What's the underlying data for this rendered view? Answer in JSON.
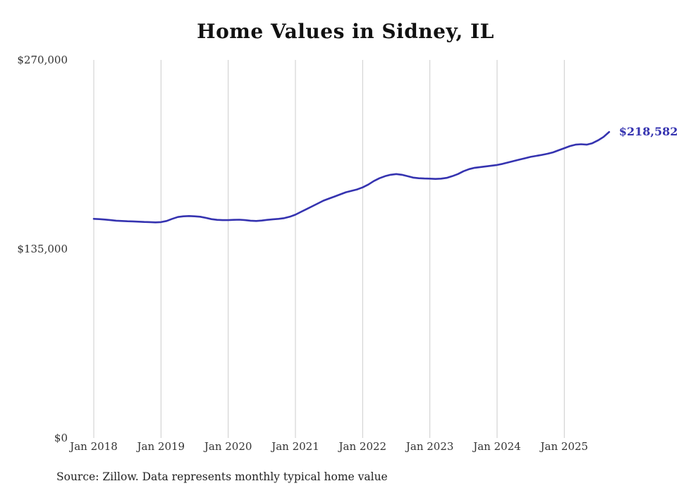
{
  "title": "Home Values in Sidney, IL",
  "source_note": "Source: Zillow. Data represents monthly typical home value",
  "end_label": "$218,582",
  "colors": {
    "line": "#3533b0",
    "end_label": "#3533b0",
    "grid": "#cccccc",
    "text": "#333333"
  },
  "chart_data": {
    "type": "line",
    "title": "Home Values in Sidney, IL",
    "xlabel": "",
    "ylabel": "",
    "ylim": [
      0,
      270000
    ],
    "grid": "vertical-only",
    "legend": "none",
    "x_start": "2018-01",
    "x_end": "2025-09",
    "points_per_year": 12,
    "x_tick_labels": [
      "Jan 2018",
      "Jan 2019",
      "Jan 2020",
      "Jan 2021",
      "Jan 2022",
      "Jan 2023",
      "Jan 2024",
      "Jan 2025"
    ],
    "y_ticks": [
      {
        "label": "$270,000",
        "value": 270000
      },
      {
        "label": "$135,000",
        "value": 135000
      },
      {
        "label": "$0",
        "value": 0
      }
    ],
    "series_name": "Typical home value (monthly)",
    "values": [
      156500,
      156300,
      156000,
      155600,
      155200,
      155000,
      154800,
      154700,
      154500,
      154300,
      154200,
      154000,
      154200,
      155000,
      156500,
      157800,
      158300,
      158500,
      158300,
      158000,
      157200,
      156300,
      155800,
      155600,
      155600,
      155800,
      155900,
      155600,
      155200,
      155000,
      155300,
      155800,
      156200,
      156500,
      157000,
      158000,
      159500,
      161500,
      163500,
      165500,
      167500,
      169500,
      171000,
      172500,
      174000,
      175500,
      176500,
      177500,
      179000,
      181000,
      183500,
      185500,
      187000,
      188000,
      188500,
      188000,
      187000,
      186000,
      185500,
      185300,
      185200,
      185000,
      185200,
      185800,
      187000,
      188500,
      190500,
      192000,
      193000,
      193500,
      194000,
      194500,
      195000,
      195800,
      196800,
      197800,
      198800,
      199800,
      200800,
      201500,
      202200,
      203000,
      204000,
      205500,
      207000,
      208500,
      209500,
      209800,
      209500,
      210500,
      212500,
      215000,
      218582
    ],
    "final_value": 218582
  }
}
